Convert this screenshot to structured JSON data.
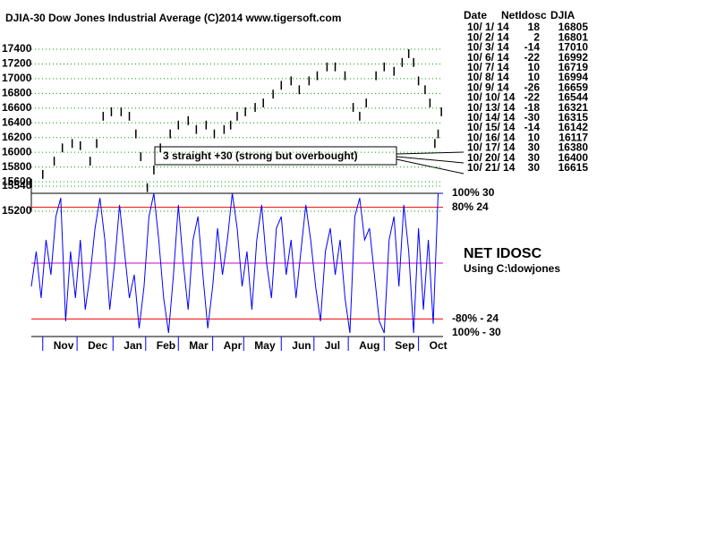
{
  "chart_data": [
    {
      "type": "range-bar",
      "title": "DJIA-30  Dow Jones Industrial Average   (C)2014 www.tigersoft.com",
      "annotation": "3 straight +30 (strong but overbought)",
      "x": [
        0,
        7,
        14,
        19,
        25,
        30,
        36,
        40,
        44,
        49,
        55,
        60,
        64,
        67,
        71,
        75,
        79,
        85,
        90,
        96,
        101,
        107,
        112,
        118,
        122,
        126,
        131,
        137,
        142,
        148,
        153,
        159,
        164,
        170,
        175,
        181,
        186,
        192,
        197,
        201,
        205,
        211,
        216,
        222,
        227,
        231,
        234,
        237,
        241,
        244,
        247,
        249,
        251
      ],
      "high": [
        15640,
        15760,
        15940,
        16120,
        16180,
        16150,
        15940,
        16180,
        16550,
        16610,
        16610,
        16550,
        16310,
        16000,
        15580,
        15820,
        16120,
        16310,
        16430,
        16490,
        16370,
        16430,
        16310,
        16370,
        16430,
        16550,
        16610,
        16670,
        16730,
        16850,
        16970,
        17030,
        16910,
        17030,
        17100,
        17220,
        17220,
        17100,
        16670,
        16550,
        16730,
        17100,
        17220,
        17160,
        17280,
        17400,
        17280,
        17030,
        16910,
        16730,
        16180,
        16310,
        16610
      ],
      "low": [
        15520,
        15640,
        15820,
        16000,
        16060,
        16030,
        15820,
        16060,
        16430,
        16490,
        16490,
        16430,
        16190,
        15880,
        15460,
        15700,
        16000,
        16190,
        16310,
        16370,
        16250,
        16310,
        16190,
        16250,
        16310,
        16430,
        16490,
        16550,
        16610,
        16730,
        16850,
        16910,
        16790,
        16910,
        16980,
        17100,
        17100,
        16980,
        16550,
        16430,
        16610,
        16980,
        17100,
        17040,
        17160,
        17280,
        17160,
        16910,
        16790,
        16610,
        16060,
        16190,
        16490
      ],
      "color": "#000000",
      "xlim": [
        0,
        252
      ],
      "ylim": [
        15200,
        17400
      ],
      "yticks": [
        17400,
        17200,
        17000,
        16800,
        16600,
        16400,
        16200,
        16000,
        15800,
        15600,
        15540,
        15200
      ],
      "grid": true,
      "grid_color": "#00a000"
    },
    {
      "type": "line",
      "title": "NET IDOSC",
      "subtitle": "Using C:\\dowjones",
      "x": [
        0,
        3,
        6,
        9,
        12,
        15,
        18,
        21,
        24,
        27,
        30,
        33,
        36,
        39,
        42,
        45,
        48,
        51,
        54,
        57,
        60,
        63,
        66,
        69,
        72,
        75,
        78,
        81,
        84,
        87,
        90,
        93,
        96,
        99,
        102,
        105,
        108,
        111,
        114,
        117,
        120,
        123,
        126,
        129,
        132,
        135,
        138,
        141,
        144,
        147,
        150,
        153,
        156,
        159,
        162,
        165,
        168,
        171,
        174,
        177,
        180,
        183,
        186,
        189,
        192,
        195,
        198,
        201,
        204,
        207,
        210,
        213,
        216,
        219,
        222,
        225,
        228,
        231,
        234,
        237,
        240,
        243,
        246,
        249,
        252
      ],
      "values": [
        -10,
        5,
        -15,
        10,
        -5,
        20,
        28,
        -25,
        5,
        -15,
        10,
        -20,
        -5,
        15,
        28,
        10,
        -20,
        0,
        25,
        5,
        -15,
        -5,
        -28,
        -10,
        20,
        30,
        10,
        -15,
        -30,
        -5,
        25,
        0,
        -20,
        10,
        20,
        -5,
        -28,
        -10,
        15,
        -5,
        10,
        30,
        15,
        -10,
        5,
        -20,
        10,
        25,
        0,
        -15,
        15,
        20,
        -5,
        10,
        -15,
        5,
        25,
        10,
        -10,
        -25,
        5,
        15,
        -5,
        10,
        -15,
        -30,
        20,
        28,
        10,
        15,
        -5,
        -25,
        -30,
        10,
        20,
        -10,
        25,
        5,
        -30,
        15,
        -20,
        10,
        -26,
        30,
        30
      ],
      "color": "#0000ff",
      "xlim": [
        0,
        252
      ],
      "ylim": [
        -30,
        30
      ],
      "yticks": [
        {
          "value": 30,
          "label": "100% 30"
        },
        {
          "value": 24,
          "label": "80%  24"
        },
        {
          "value": -24,
          "label": "-80% - 24"
        },
        {
          "value": -30,
          "label": "100%  - 30"
        }
      ],
      "reference_lines": [
        {
          "value": 24,
          "color": "#ff0000"
        },
        {
          "value": 0,
          "color": "#cc00cc"
        },
        {
          "value": -24,
          "color": "#ff0000"
        }
      ],
      "xticks": [
        {
          "value": 7,
          "label": "Nov"
        },
        {
          "value": 28,
          "label": "Dec"
        },
        {
          "value": 50,
          "label": "Jan"
        },
        {
          "value": 70,
          "label": "Feb"
        },
        {
          "value": 90,
          "label": "Mar"
        },
        {
          "value": 111,
          "label": "Apr"
        },
        {
          "value": 130,
          "label": "May"
        },
        {
          "value": 153,
          "label": "Jun"
        },
        {
          "value": 173,
          "label": "Jul"
        },
        {
          "value": 194,
          "label": "Aug"
        },
        {
          "value": 216,
          "label": "Sep"
        },
        {
          "value": 237,
          "label": "Oct"
        }
      ]
    }
  ],
  "table": {
    "header": [
      "Date",
      "NetIdosc",
      "DJIA"
    ],
    "rows": [
      [
        "10/ 1/ 14",
        18,
        16805
      ],
      [
        "10/ 2/ 14",
        2,
        16801
      ],
      [
        "10/ 3/ 14",
        -14,
        17010
      ],
      [
        "10/ 6/ 14",
        -22,
        16992
      ],
      [
        "10/ 7/ 14",
        10,
        16719
      ],
      [
        "10/ 8/ 14",
        10,
        16994
      ],
      [
        "10/ 9/ 14",
        -26,
        16659
      ],
      [
        "10/ 10/ 14",
        -22,
        16544
      ],
      [
        "10/ 13/ 14",
        -18,
        16321
      ],
      [
        "10/ 14/ 14",
        -30,
        16315
      ],
      [
        "10/ 15/ 14",
        -14,
        16142
      ],
      [
        "10/ 16/ 14",
        10,
        16117
      ],
      [
        "10/ 17/ 14",
        30,
        16380
      ],
      [
        "10/ 20/ 14",
        30,
        16400
      ],
      [
        "10/ 21/ 14",
        30,
        16615
      ]
    ]
  }
}
